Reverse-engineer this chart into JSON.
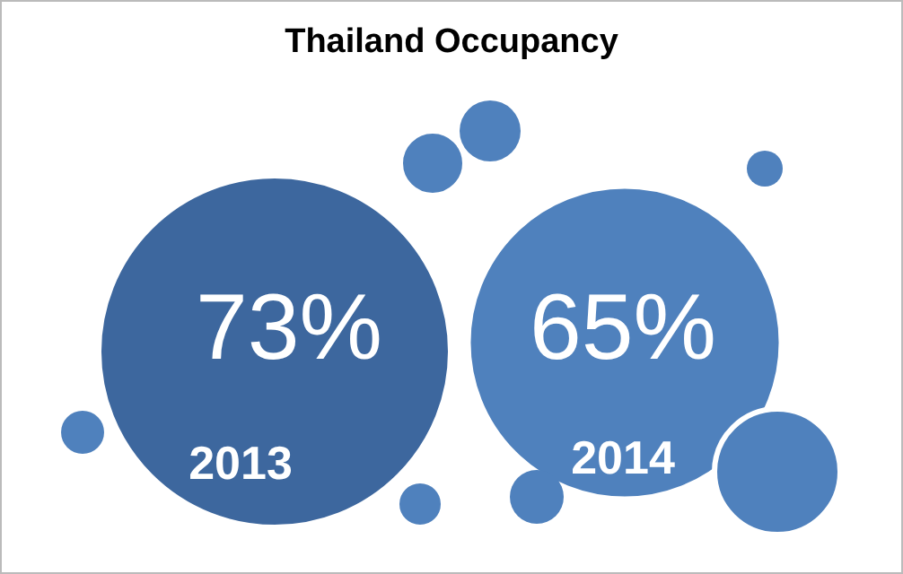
{
  "chart_data": {
    "type": "other",
    "title": "Thailand Occupancy",
    "categories": [
      "2013",
      "2014"
    ],
    "values": [
      73,
      65
    ],
    "value_labels": [
      "73%",
      "65%"
    ],
    "colors": [
      "#3d679e",
      "#4f81bd"
    ]
  }
}
